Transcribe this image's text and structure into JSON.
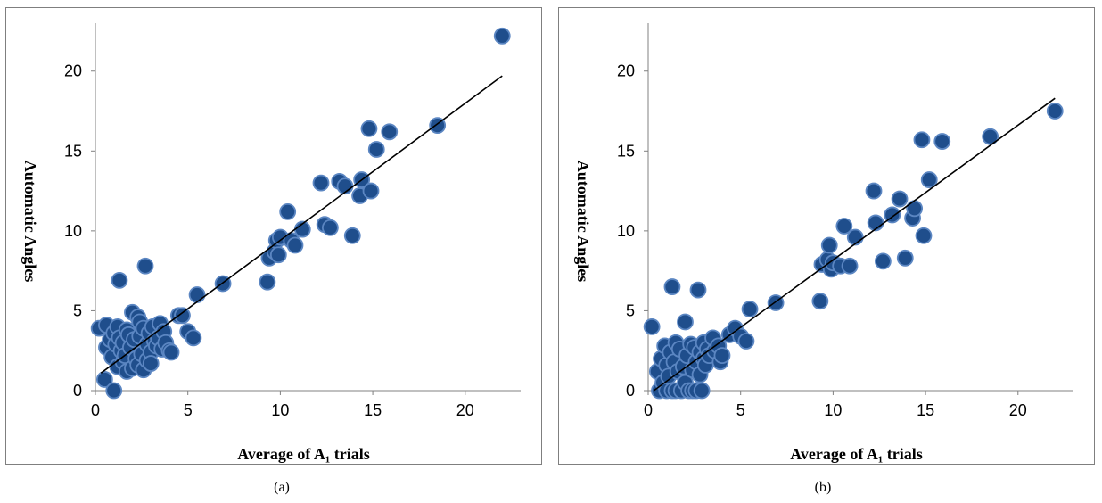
{
  "figure": {
    "captions": [
      "(a)",
      "(b)"
    ]
  },
  "chart_data": [
    {
      "type": "scatter",
      "xlabel": "Average of A₁ trials",
      "ylabel": "Automatic Angles",
      "xlim": [
        0,
        23
      ],
      "ylim": [
        0,
        23
      ],
      "xticks": [
        0,
        5,
        10,
        15,
        20
      ],
      "yticks": [
        0,
        5,
        10,
        15,
        20
      ],
      "trendline": {
        "x": [
          0.3,
          22
        ],
        "y": [
          1.1,
          19.7
        ]
      },
      "points": [
        [
          0.2,
          3.9
        ],
        [
          0.5,
          0.7
        ],
        [
          0.6,
          4.1
        ],
        [
          0.6,
          2.7
        ],
        [
          0.8,
          3.2
        ],
        [
          0.9,
          2.1
        ],
        [
          1.0,
          0.0
        ],
        [
          1.0,
          3.6
        ],
        [
          1.1,
          2.9
        ],
        [
          1.2,
          4.0
        ],
        [
          1.2,
          1.5
        ],
        [
          1.3,
          6.9
        ],
        [
          1.3,
          3.3
        ],
        [
          1.4,
          2.5
        ],
        [
          1.5,
          3.0
        ],
        [
          1.5,
          1.8
        ],
        [
          1.6,
          2.2
        ],
        [
          1.7,
          3.8
        ],
        [
          1.7,
          1.2
        ],
        [
          1.8,
          3.5
        ],
        [
          1.9,
          2.7
        ],
        [
          2.0,
          4.9
        ],
        [
          2.0,
          1.4
        ],
        [
          2.1,
          3.2
        ],
        [
          2.2,
          2.0
        ],
        [
          2.3,
          4.6
        ],
        [
          2.3,
          1.6
        ],
        [
          2.4,
          3.4
        ],
        [
          2.4,
          4.3
        ],
        [
          2.5,
          2.3
        ],
        [
          2.6,
          3.9
        ],
        [
          2.6,
          1.3
        ],
        [
          2.7,
          7.8
        ],
        [
          2.8,
          2.9
        ],
        [
          2.8,
          1.9
        ],
        [
          2.9,
          3.6
        ],
        [
          3.0,
          2.4
        ],
        [
          3.0,
          1.7
        ],
        [
          3.1,
          4.0
        ],
        [
          3.2,
          3.1
        ],
        [
          3.3,
          2.8
        ],
        [
          3.4,
          3.3
        ],
        [
          3.5,
          4.2
        ],
        [
          3.6,
          2.6
        ],
        [
          3.7,
          3.7
        ],
        [
          3.8,
          3.0
        ],
        [
          4.0,
          2.5
        ],
        [
          4.1,
          2.4
        ],
        [
          4.5,
          4.7
        ],
        [
          4.7,
          4.7
        ],
        [
          5.0,
          3.7
        ],
        [
          5.3,
          3.3
        ],
        [
          5.5,
          6.0
        ],
        [
          6.9,
          6.7
        ],
        [
          9.3,
          6.8
        ],
        [
          9.4,
          8.3
        ],
        [
          9.7,
          8.7
        ],
        [
          9.8,
          9.4
        ],
        [
          9.9,
          8.5
        ],
        [
          10.0,
          9.6
        ],
        [
          10.4,
          11.2
        ],
        [
          10.6,
          9.4
        ],
        [
          10.8,
          9.1
        ],
        [
          11.2,
          10.1
        ],
        [
          12.2,
          13.0
        ],
        [
          12.4,
          10.4
        ],
        [
          12.7,
          10.2
        ],
        [
          13.2,
          13.1
        ],
        [
          13.5,
          12.8
        ],
        [
          13.9,
          9.7
        ],
        [
          14.3,
          12.2
        ],
        [
          14.4,
          13.2
        ],
        [
          14.8,
          16.4
        ],
        [
          14.9,
          12.5
        ],
        [
          15.2,
          15.1
        ],
        [
          15.9,
          16.2
        ],
        [
          18.5,
          16.6
        ],
        [
          22.0,
          22.2
        ]
      ]
    },
    {
      "type": "scatter",
      "xlabel": "Average of A₁ trials",
      "ylabel": "Automatic Angles",
      "xlim": [
        0,
        23
      ],
      "ylim": [
        0,
        23
      ],
      "xticks": [
        0,
        5,
        10,
        15,
        20
      ],
      "yticks": [
        0,
        5,
        10,
        15,
        20
      ],
      "trendline": {
        "x": [
          0.3,
          22
        ],
        "y": [
          0.0,
          18.3
        ]
      },
      "points": [
        [
          0.2,
          4.0
        ],
        [
          0.5,
          1.2
        ],
        [
          0.6,
          0.0
        ],
        [
          0.7,
          2.0
        ],
        [
          0.8,
          0.5
        ],
        [
          0.9,
          2.8
        ],
        [
          1.0,
          0.0
        ],
        [
          1.0,
          1.6
        ],
        [
          1.1,
          0.9
        ],
        [
          1.2,
          2.4
        ],
        [
          1.3,
          6.5
        ],
        [
          1.3,
          0.0
        ],
        [
          1.4,
          1.8
        ],
        [
          1.5,
          3.0
        ],
        [
          1.5,
          0.0
        ],
        [
          1.6,
          1.2
        ],
        [
          1.7,
          2.6
        ],
        [
          1.8,
          0.0
        ],
        [
          1.9,
          1.5
        ],
        [
          2.0,
          4.3
        ],
        [
          2.0,
          0.5
        ],
        [
          2.1,
          2.2
        ],
        [
          2.2,
          0.0
        ],
        [
          2.3,
          2.9
        ],
        [
          2.4,
          1.3
        ],
        [
          2.4,
          0.0
        ],
        [
          2.5,
          2.7
        ],
        [
          2.6,
          1.8
        ],
        [
          2.6,
          0.0
        ],
        [
          2.7,
          6.3
        ],
        [
          2.8,
          2.4
        ],
        [
          2.8,
          1.0
        ],
        [
          2.9,
          0.0
        ],
        [
          3.0,
          2.0
        ],
        [
          3.0,
          3.0
        ],
        [
          3.1,
          1.6
        ],
        [
          3.2,
          2.6
        ],
        [
          3.3,
          2.2
        ],
        [
          3.5,
          3.3
        ],
        [
          3.6,
          2.5
        ],
        [
          3.8,
          2.8
        ],
        [
          3.9,
          1.8
        ],
        [
          4.0,
          2.2
        ],
        [
          4.4,
          3.5
        ],
        [
          4.7,
          3.9
        ],
        [
          5.0,
          3.4
        ],
        [
          5.3,
          3.1
        ],
        [
          5.5,
          5.1
        ],
        [
          6.9,
          5.5
        ],
        [
          9.3,
          5.6
        ],
        [
          9.4,
          7.9
        ],
        [
          9.7,
          8.2
        ],
        [
          9.8,
          9.1
        ],
        [
          9.9,
          7.6
        ],
        [
          10.0,
          8.0
        ],
        [
          10.4,
          7.8
        ],
        [
          10.6,
          10.3
        ],
        [
          10.9,
          7.8
        ],
        [
          11.2,
          9.6
        ],
        [
          12.2,
          12.5
        ],
        [
          12.3,
          10.5
        ],
        [
          12.7,
          8.1
        ],
        [
          13.2,
          11.0
        ],
        [
          13.6,
          12.0
        ],
        [
          13.9,
          8.3
        ],
        [
          14.3,
          10.8
        ],
        [
          14.4,
          11.4
        ],
        [
          14.8,
          15.7
        ],
        [
          14.9,
          9.7
        ],
        [
          15.2,
          13.2
        ],
        [
          15.9,
          15.6
        ],
        [
          18.5,
          15.9
        ],
        [
          22.0,
          17.5
        ]
      ]
    }
  ]
}
